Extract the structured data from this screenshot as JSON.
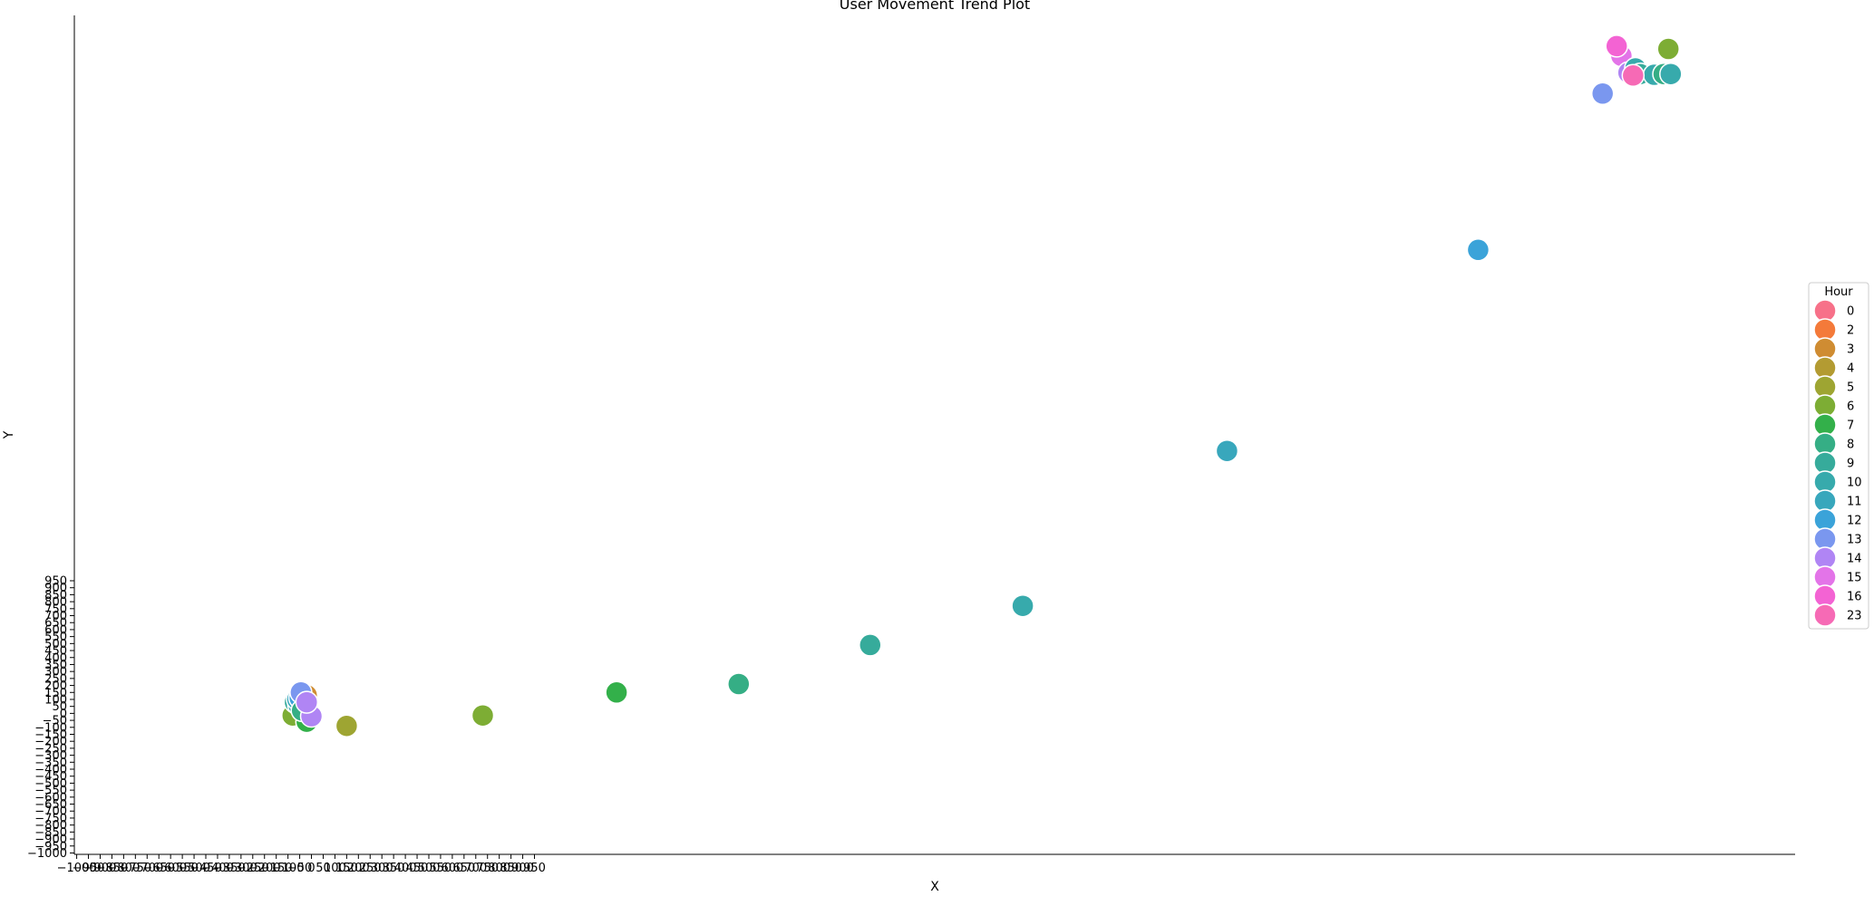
{
  "chart_data": {
    "type": "scatter",
    "title": "User Movement Trend Plot",
    "xlabel": "X",
    "ylabel": "Y",
    "grid": false,
    "legend": {
      "title": "Hour",
      "placement": "right",
      "entries": [
        {
          "label": "0",
          "color": "#f77189"
        },
        {
          "label": "2",
          "color": "#f47a3a"
        },
        {
          "label": "3",
          "color": "#cf8c32"
        },
        {
          "label": "4",
          "color": "#b39b32"
        },
        {
          "label": "5",
          "color": "#9ea532"
        },
        {
          "label": "6",
          "color": "#7dad34"
        },
        {
          "label": "7",
          "color": "#33b04a"
        },
        {
          "label": "8",
          "color": "#35ae85"
        },
        {
          "label": "9",
          "color": "#36ab9b"
        },
        {
          "label": "10",
          "color": "#37aaac"
        },
        {
          "label": "11",
          "color": "#38a7bc"
        },
        {
          "label": "12",
          "color": "#3ba3d9"
        },
        {
          "label": "13",
          "color": "#7a97ef"
        },
        {
          "label": "14",
          "color": "#b085f4"
        },
        {
          "label": "15",
          "color": "#e374e8"
        },
        {
          "label": "16",
          "color": "#f363d3"
        },
        {
          "label": "23",
          "color": "#f66ab5"
        }
      ]
    },
    "x_ticks": [
      "−1000",
      "−950",
      "−900",
      "−850",
      "−800",
      "−750",
      "−700",
      "−650",
      "−600",
      "−550",
      "−500",
      "−450",
      "−400",
      "−350",
      "−300",
      "−250",
      "−200",
      "−150",
      "−100",
      "−50",
      "0",
      "50",
      "100",
      "150",
      "200",
      "250",
      "300",
      "350",
      "400",
      "450",
      "500",
      "550",
      "600",
      "650",
      "700",
      "750",
      "800",
      "850",
      "900",
      "950"
    ],
    "y_ticks": [
      "−1000",
      "−950",
      "−900",
      "−850",
      "−800",
      "−750",
      "−700",
      "−650",
      "−600",
      "−550",
      "−500",
      "−450",
      "−400",
      "−350",
      "−300",
      "−250",
      "−200",
      "−150",
      "−100",
      "−50",
      "0",
      "50",
      "100",
      "150",
      "200",
      "250",
      "300",
      "350",
      "400",
      "450",
      "500",
      "550",
      "600",
      "650",
      "700",
      "750",
      "800",
      "850",
      "900",
      "950"
    ],
    "xlim": [
      -1010,
      6320
    ],
    "ylim": [
      -1010,
      5000
    ],
    "points": [
      {
        "hour": "6",
        "x": -80,
        "y": -15
      },
      {
        "hour": "5",
        "x": -30,
        "y": 120
      },
      {
        "hour": "4",
        "x": -25,
        "y": 100
      },
      {
        "hour": "3",
        "x": -20,
        "y": 130
      },
      {
        "hour": "9",
        "x": -70,
        "y": 80
      },
      {
        "hour": "10",
        "x": -55,
        "y": 60
      },
      {
        "hour": "11",
        "x": -60,
        "y": 100
      },
      {
        "hour": "12",
        "x": -50,
        "y": 110
      },
      {
        "hour": "7",
        "x": -20,
        "y": -60
      },
      {
        "hour": "8",
        "x": -40,
        "y": 20
      },
      {
        "hour": "13",
        "x": -45,
        "y": 150
      },
      {
        "hour": "14",
        "x": 0,
        "y": -20
      },
      {
        "hour": "14",
        "x": -20,
        "y": 80
      },
      {
        "hour": "5",
        "x": 150,
        "y": -90
      },
      {
        "hour": "6",
        "x": 730,
        "y": -15
      },
      {
        "hour": "7",
        "x": 1300,
        "y": 150
      },
      {
        "hour": "8",
        "x": 1820,
        "y": 210
      },
      {
        "hour": "9",
        "x": 2380,
        "y": 490
      },
      {
        "hour": "10",
        "x": 3030,
        "y": 770
      },
      {
        "hour": "11",
        "x": 3900,
        "y": 1880
      },
      {
        "hour": "12",
        "x": 4970,
        "y": 3320
      },
      {
        "hour": "13",
        "x": 5500,
        "y": 4440
      },
      {
        "hour": "15",
        "x": 5580,
        "y": 4710
      },
      {
        "hour": "14",
        "x": 5610,
        "y": 4590
      },
      {
        "hour": "10",
        "x": 5640,
        "y": 4620
      },
      {
        "hour": "16",
        "x": 5560,
        "y": 4780
      },
      {
        "hour": "9",
        "x": 5660,
        "y": 4580
      },
      {
        "hour": "10",
        "x": 5720,
        "y": 4575
      },
      {
        "hour": "8",
        "x": 5760,
        "y": 4580
      },
      {
        "hour": "6",
        "x": 5780,
        "y": 4760
      },
      {
        "hour": "10",
        "x": 5790,
        "y": 4580
      },
      {
        "hour": "23",
        "x": 5630,
        "y": 4570
      }
    ]
  }
}
